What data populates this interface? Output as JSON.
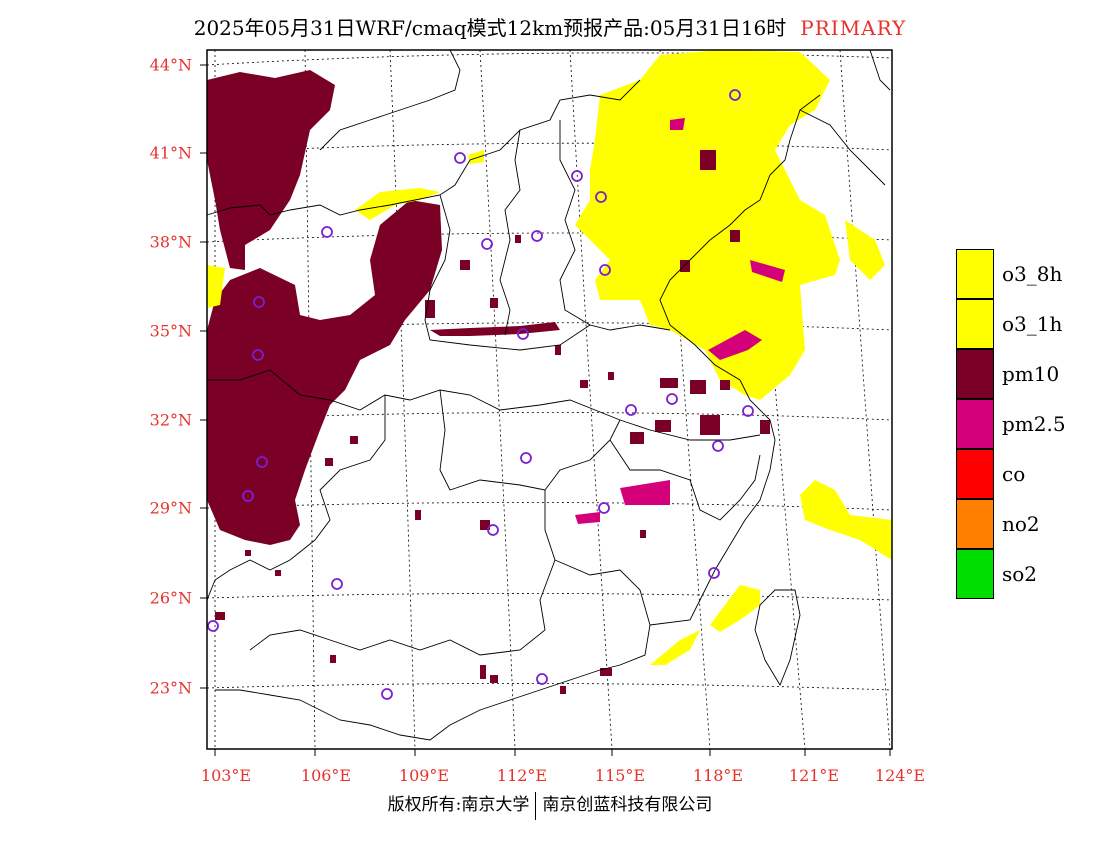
{
  "title": {
    "main": "2025年05月31日WRF/cmaq模式12km预报产品:05月31日16时",
    "tag": "PRIMARY"
  },
  "axes": {
    "lat_labels": [
      "44°N",
      "41°N",
      "38°N",
      "35°N",
      "32°N",
      "29°N",
      "26°N",
      "23°N"
    ],
    "lon_labels": [
      "103°E",
      "106°E",
      "109°E",
      "112°E",
      "115°E",
      "118°E",
      "121°E",
      "124°E"
    ]
  },
  "legend": [
    {
      "label": "o3_8h",
      "color": "#ffff00"
    },
    {
      "label": "o3_1h",
      "color": "#ffff00"
    },
    {
      "label": "pm10",
      "color": "#7a0026"
    },
    {
      "label": "pm2.5",
      "color": "#d4007a"
    },
    {
      "label": "co",
      "color": "#ff0000"
    },
    {
      "label": "no2",
      "color": "#ff8000"
    },
    {
      "label": "so2",
      "color": "#00dd00"
    }
  ],
  "footer": {
    "left": "版权所有:南京大学",
    "right": "南京创蓝科技有限公司"
  }
}
